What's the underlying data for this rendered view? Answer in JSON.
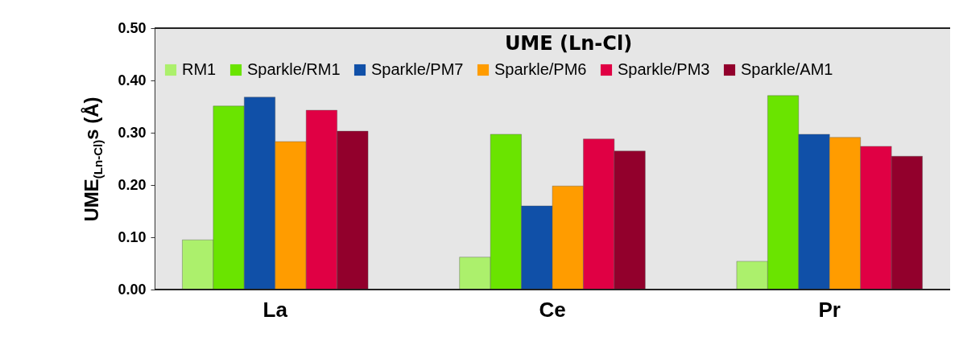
{
  "chart_data": {
    "type": "bar",
    "title": "UME (Ln-Cl)",
    "ylabel": "UME$_{(Ln-Cl)}$s (Å)",
    "categories": [
      "La",
      "Ce",
      "Pr"
    ],
    "series": [
      {
        "name": "RM1",
        "color": "#acf06c",
        "values": [
          0.095,
          0.062,
          0.054
        ]
      },
      {
        "name": "Sparkle/RM1",
        "color": "#6ae400",
        "values": [
          0.351,
          0.297,
          0.371
        ]
      },
      {
        "name": "Sparkle/PM7",
        "color": "#1050a8",
        "values": [
          0.368,
          0.16,
          0.297
        ]
      },
      {
        "name": "Sparkle/PM6",
        "color": "#ff9c00",
        "values": [
          0.283,
          0.198,
          0.291
        ]
      },
      {
        "name": "Sparkle/PM3",
        "color": "#e00044",
        "values": [
          0.343,
          0.288,
          0.274
        ]
      },
      {
        "name": "Sparkle/AM1",
        "color": "#92002c",
        "values": [
          0.303,
          0.265,
          0.255
        ]
      }
    ],
    "ylim": [
      0,
      0.5
    ],
    "yticks": [
      {
        "value": 0,
        "label": "0.00"
      },
      {
        "value": 0.1,
        "label": "0.10"
      },
      {
        "value": 0.2,
        "label": "0.20"
      },
      {
        "value": 0.3,
        "label": "0.30"
      },
      {
        "value": 0.4,
        "label": "0.40"
      },
      {
        "value": 0.5,
        "label": "0.50"
      }
    ],
    "legend": "top",
    "grid": false
  }
}
